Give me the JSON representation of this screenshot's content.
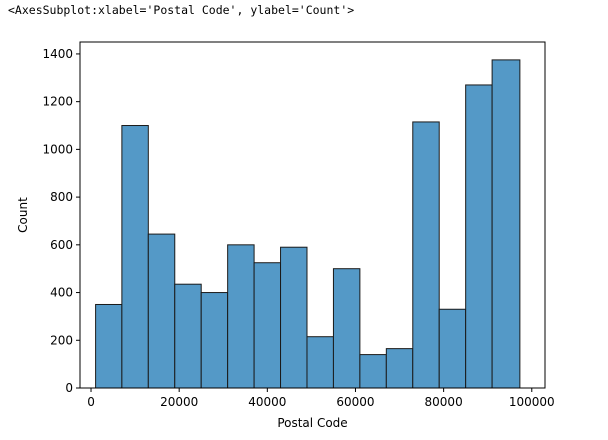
{
  "output_repr": "<AxesSubplot:xlabel='Postal Code', ylabel='Count'>",
  "colors": {
    "bar_fill": "#5499c7",
    "bar_edge": "#1a1a1a",
    "axis": "#000000",
    "background": "#ffffff"
  },
  "chart_data": {
    "type": "bar",
    "title": "",
    "xlabel": "Postal Code",
    "ylabel": "Count",
    "grid": false,
    "legend": "none",
    "xlim": [
      -2500,
      103000
    ],
    "ylim": [
      0,
      1450
    ],
    "bin_edges": [
      1040,
      7000,
      13000,
      19000,
      25000,
      31000,
      37000,
      43000,
      49000,
      55000,
      61000,
      67000,
      73000,
      79000,
      85000,
      91000,
      97300
    ],
    "values": [
      350,
      1100,
      645,
      435,
      400,
      600,
      525,
      590,
      215,
      500,
      140,
      165,
      1115,
      330,
      1270,
      1375
    ],
    "x_ticks": [
      {
        "value": 0,
        "label": "0"
      },
      {
        "value": 20000,
        "label": "20000"
      },
      {
        "value": 40000,
        "label": "40000"
      },
      {
        "value": 60000,
        "label": "60000"
      },
      {
        "value": 80000,
        "label": "80000"
      },
      {
        "value": 100000,
        "label": "100000"
      }
    ],
    "y_ticks": [
      {
        "value": 0,
        "label": "0"
      },
      {
        "value": 200,
        "label": "200"
      },
      {
        "value": 400,
        "label": "400"
      },
      {
        "value": 600,
        "label": "600"
      },
      {
        "value": 800,
        "label": "800"
      },
      {
        "value": 1000,
        "label": "1000"
      },
      {
        "value": 1200,
        "label": "1200"
      },
      {
        "value": 1400,
        "label": "1400"
      }
    ]
  }
}
